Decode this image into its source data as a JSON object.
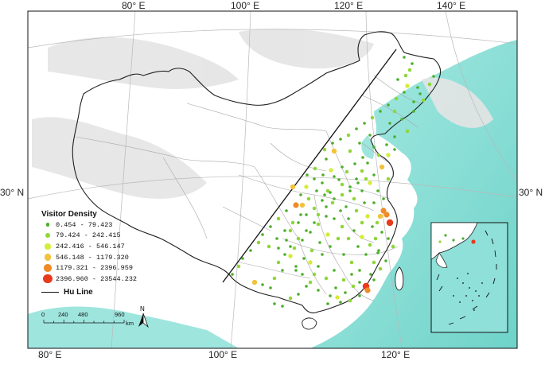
{
  "map": {
    "longitude_labels_top": [
      "80° E",
      "100° E",
      "120° E",
      "140° E"
    ],
    "longitude_labels_bottom": [
      "80° E",
      "100° E",
      "120° E"
    ],
    "latitude_labels": {
      "left": "30° N",
      "right": "30° N"
    },
    "colors": {
      "ocean": "#8fe0d8",
      "land": "#ffffff",
      "terrain_shade": "#dcdcdc",
      "border": "#222222",
      "province_border": "#9a9a9a",
      "hu_line": "#111111"
    }
  },
  "legend": {
    "title": "Visitor Density",
    "classes": [
      {
        "range": "0.454 - 79.423",
        "color": "#4caf2a",
        "size": 2.4
      },
      {
        "range": "79.424 - 242.415",
        "color": "#8fd63a",
        "size": 3.0
      },
      {
        "range": "242.416 - 546.147",
        "color": "#d6ec3a",
        "size": 3.6
      },
      {
        "range": "546.148 - 1179.320",
        "color": "#f2c23a",
        "size": 4.2
      },
      {
        "range": "1179.321 - 2396.959",
        "color": "#f08a28",
        "size": 4.8
      },
      {
        "range": "2396.960 - 23544.232",
        "color": "#e83a1c",
        "size": 5.6
      }
    ],
    "hu_line_label": "Hu Line"
  },
  "scale_bar": {
    "ticks": [
      "0",
      "240",
      "480",
      "960"
    ],
    "unit": "km"
  },
  "north_arrow": {
    "label": "N"
  },
  "inset": {
    "description_icon": "south-china-sea-inset"
  }
}
